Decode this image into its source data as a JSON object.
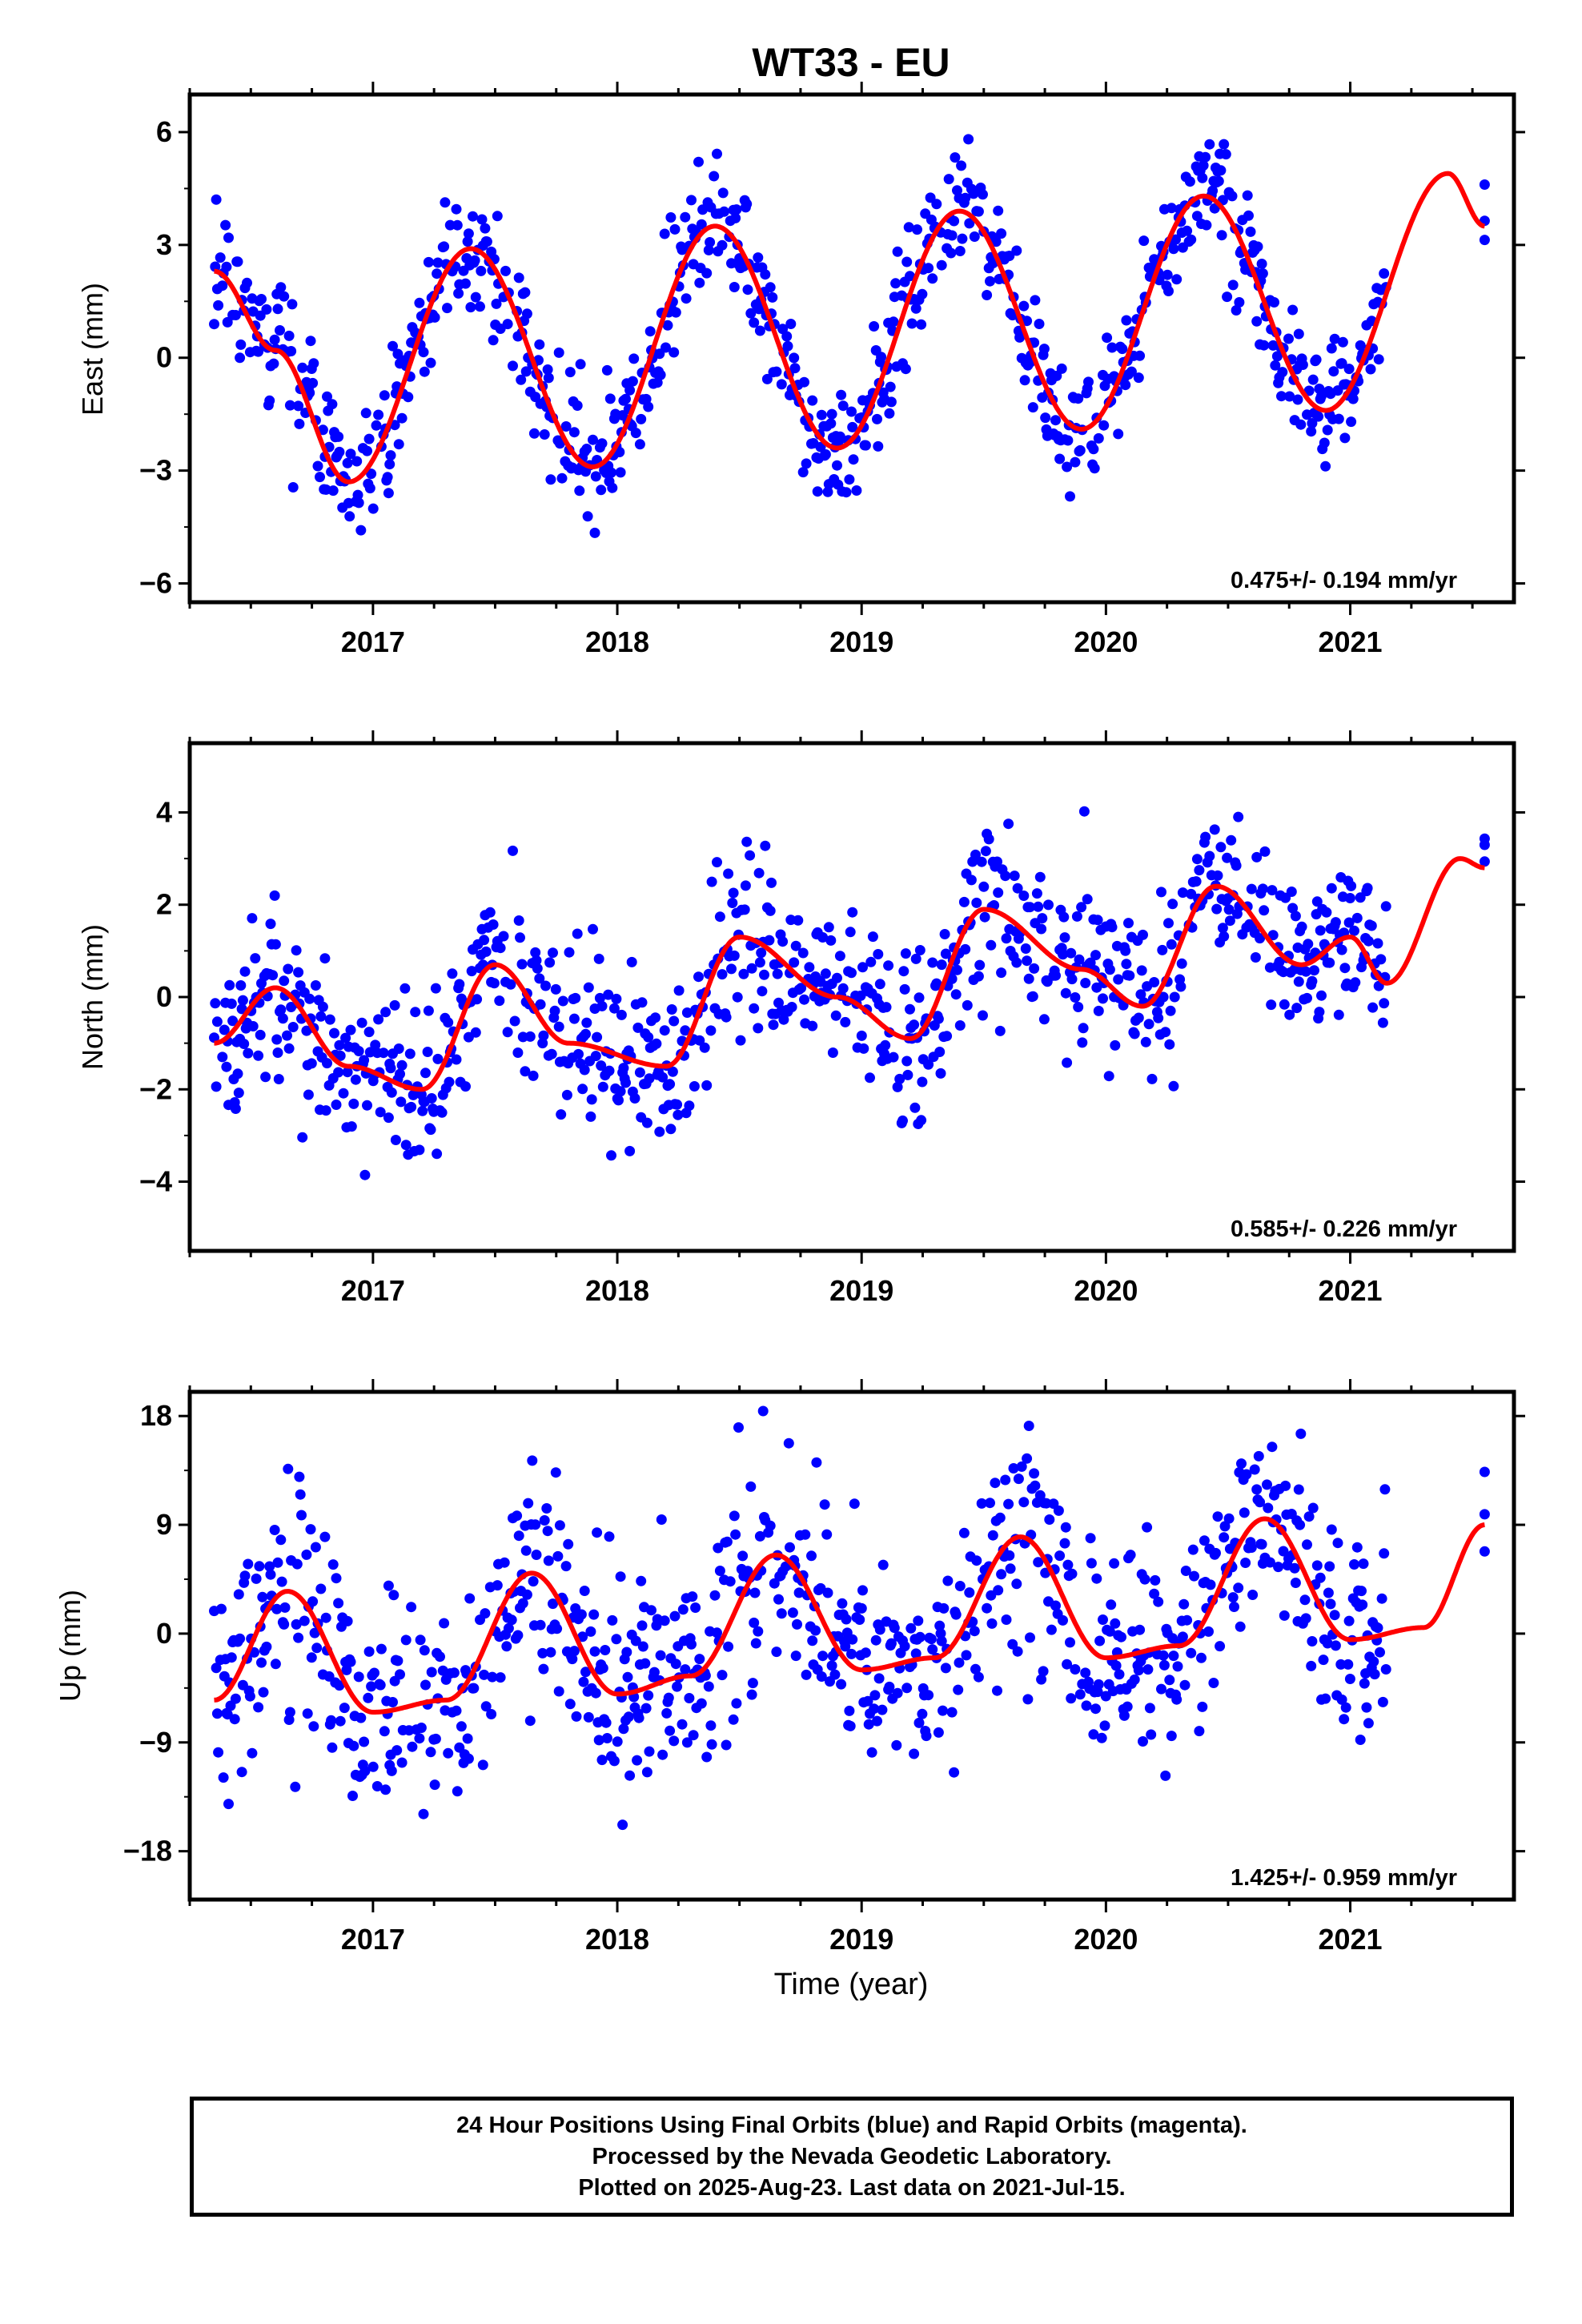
{
  "title": "WT33 - EU",
  "xlabel": "Time (year)",
  "caption": [
    "24 Hour Positions Using Final Orbits (blue) and Rapid Orbits (magenta).",
    "Processed by the Nevada Geodetic Laboratory.",
    "Plotted on 2025-Aug-23. Last data on 2021-Jul-15."
  ],
  "colors": {
    "final_orbits": "#0000ff",
    "rapid_orbits": "#ff00ff",
    "model": "#ff0000",
    "frame": "#000000"
  },
  "chart_data": [
    {
      "type": "scatter",
      "component": "east",
      "ylabel": "East (mm)",
      "xlim": [
        2016.25,
        2021.67
      ],
      "ylim": [
        -6.5,
        7
      ],
      "yticks": [
        -6,
        -3,
        0,
        3,
        6
      ],
      "xticks": [
        2017,
        2018,
        2019,
        2020,
        2021
      ],
      "rate_label": "0.475+/- 0.194 mm/yr",
      "model_mean": [
        [
          2016.35,
          2.3
        ],
        [
          2016.6,
          0.2
        ],
        [
          2016.9,
          -3.3
        ],
        [
          2017.4,
          2.9
        ],
        [
          2017.9,
          -2.9
        ],
        [
          2018.4,
          3.5
        ],
        [
          2018.9,
          -2.4
        ],
        [
          2019.4,
          3.9
        ],
        [
          2019.9,
          -1.9
        ],
        [
          2020.4,
          4.3
        ],
        [
          2020.9,
          -1.4
        ],
        [
          2021.4,
          4.9
        ],
        [
          2021.55,
          3.5
        ]
      ],
      "data_summary": {
        "x_start": 2016.35,
        "x_end": 2021.15,
        "gap_end": 2021.55,
        "annual_amplitude": 3.0,
        "scatter_std": 0.9,
        "rate": 0.475
      },
      "series": [
        {
          "name": "24 Hour Positions Using Final Orbits (blue)",
          "color": "#0000ff"
        },
        {
          "name": "Rapid Orbits (magenta)",
          "color": "#ff00ff"
        }
      ]
    },
    {
      "type": "scatter",
      "component": "north",
      "ylabel": "North (mm)",
      "xlim": [
        2016.25,
        2021.67
      ],
      "ylim": [
        -5.5,
        5.5
      ],
      "yticks": [
        -4,
        -2,
        0,
        2,
        4
      ],
      "xticks": [
        2017,
        2018,
        2019,
        2020,
        2021
      ],
      "rate_label": "0.585+/- 0.226 mm/yr",
      "model_mean": [
        [
          2016.35,
          -1.0
        ],
        [
          2016.6,
          0.2
        ],
        [
          2016.9,
          -1.5
        ],
        [
          2017.2,
          -2.0
        ],
        [
          2017.5,
          0.7
        ],
        [
          2017.8,
          -1.0
        ],
        [
          2018.2,
          -1.5
        ],
        [
          2018.5,
          1.3
        ],
        [
          2018.9,
          0.0
        ],
        [
          2019.2,
          -0.9
        ],
        [
          2019.5,
          1.9
        ],
        [
          2019.9,
          0.6
        ],
        [
          2020.15,
          -0.2
        ],
        [
          2020.45,
          2.4
        ],
        [
          2020.8,
          0.7
        ],
        [
          2021.0,
          1.3
        ],
        [
          2021.15,
          0.3
        ],
        [
          2021.45,
          3.0
        ],
        [
          2021.55,
          2.8
        ]
      ],
      "data_summary": {
        "x_start": 2016.35,
        "x_end": 2021.15,
        "gap_end": 2021.55,
        "scatter_std": 0.9,
        "rate": 0.585
      },
      "series": [
        {
          "name": "24 Hour Positions Using Final Orbits (blue)",
          "color": "#0000ff"
        },
        {
          "name": "Rapid Orbits (magenta)",
          "color": "#ff00ff"
        }
      ]
    },
    {
      "type": "scatter",
      "component": "up",
      "ylabel": "Up (mm)",
      "xlim": [
        2016.25,
        2021.67
      ],
      "ylim": [
        -22,
        20
      ],
      "yticks": [
        -18,
        -9,
        0,
        9,
        18
      ],
      "xticks": [
        2017,
        2018,
        2019,
        2020,
        2021
      ],
      "rate_label": "1.425+/- 0.959 mm/yr",
      "model_mean": [
        [
          2016.35,
          -5.5
        ],
        [
          2016.65,
          3.5
        ],
        [
          2017.0,
          -6.5
        ],
        [
          2017.3,
          -5.5
        ],
        [
          2017.65,
          5.0
        ],
        [
          2018.0,
          -5.0
        ],
        [
          2018.3,
          -3.5
        ],
        [
          2018.65,
          6.5
        ],
        [
          2019.0,
          -3.0
        ],
        [
          2019.3,
          -2.0
        ],
        [
          2019.65,
          8.0
        ],
        [
          2020.0,
          -2.0
        ],
        [
          2020.3,
          -1.0
        ],
        [
          2020.65,
          9.5
        ],
        [
          2021.0,
          -0.5
        ],
        [
          2021.3,
          0.5
        ],
        [
          2021.55,
          9.0
        ]
      ],
      "data_summary": {
        "x_start": 2016.35,
        "x_end": 2021.15,
        "gap_end": 2021.55,
        "scatter_std": 4.5,
        "rate": 1.425
      },
      "series": [
        {
          "name": "24 Hour Positions Using Final Orbits (blue)",
          "color": "#0000ff"
        },
        {
          "name": "Rapid Orbits (magenta)",
          "color": "#ff00ff"
        }
      ]
    }
  ]
}
